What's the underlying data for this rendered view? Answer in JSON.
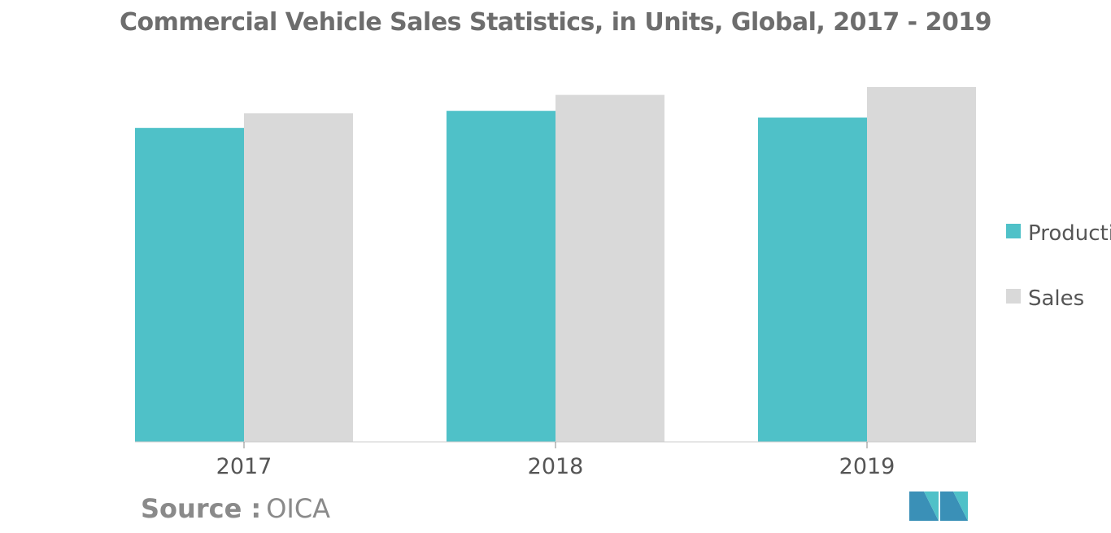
{
  "chart_data": {
    "type": "bar",
    "title": "Commercial Vehicle Sales Statistics, in Units, Global, 2017 - 2019",
    "categories": [
      "2017",
      "2018",
      "2019"
    ],
    "series": [
      {
        "name": "Production",
        "values": [
          88.5,
          93.3,
          91.4
        ],
        "color": "#4fc1c8"
      },
      {
        "name": "Sales",
        "values": [
          92.6,
          97.8,
          100
        ],
        "color": "#d9d9d9"
      }
    ],
    "ylim": [
      0,
      100
    ],
    "xlabel": "",
    "ylabel": "",
    "grid": false,
    "legend_position": "right"
  },
  "source": {
    "label": "Source :",
    "value": "OICA"
  },
  "logo": {
    "icon": "company-logo-icon",
    "colors": [
      "#3a90b7",
      "#4fc1c8"
    ]
  }
}
